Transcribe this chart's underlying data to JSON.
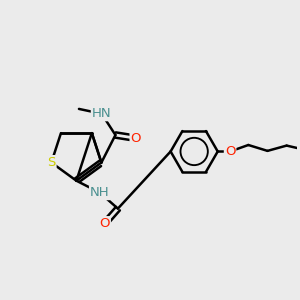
{
  "background_color": "#ebebeb",
  "bond_color": "#000000",
  "bond_width": 1.8,
  "atom_colors": {
    "N": "#0000cc",
    "O": "#ff2200",
    "S": "#cccc00",
    "NH": "#4a9090"
  },
  "font_size": 9.5,
  "figsize": [
    3.0,
    3.0
  ],
  "dpi": 100,
  "xlim": [
    0,
    10
  ],
  "ylim": [
    0,
    10
  ]
}
